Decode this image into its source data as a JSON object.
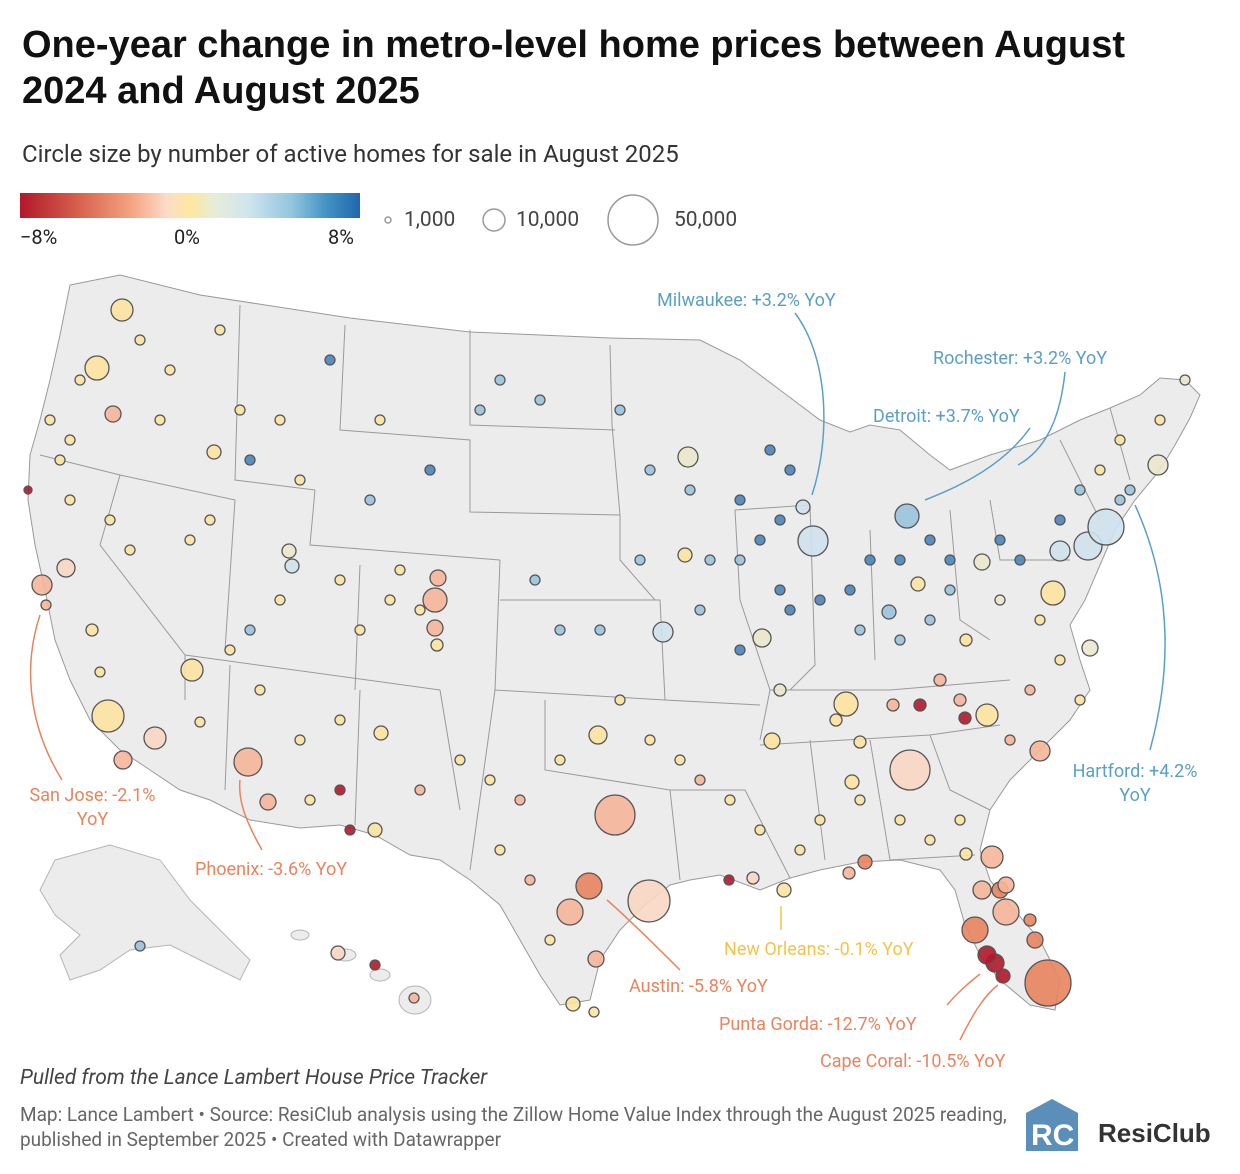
{
  "title": "One-year change in metro-level home prices between August 2024 and August 2025",
  "subtitle": "Circle size by number of active homes for sale in August 2025",
  "color_legend": {
    "min": "−8%",
    "mid": "0%",
    "max": "8%"
  },
  "size_legend": {
    "small": "1,000",
    "medium": "10,000",
    "large": "50,000"
  },
  "annotations": {
    "milwaukee": "Milwaukee: +3.2% YoY",
    "rochester": "Rochester: +3.2% YoY",
    "detroit": "Detroit: +3.7% YoY",
    "hartford_line1": "Hartford: +4.2%",
    "hartford_line2": "YoY",
    "sanjose_line1": "San Jose: -2.1%",
    "sanjose_line2": "YoY",
    "phoenix": "Phoenix: -3.6% YoY",
    "austin": "Austin: -5.8% YoY",
    "neworleans": "New Orleans: -0.1% YoY",
    "puntagorda": "Punta Gorda: -12.7% YoY",
    "capecoral": "Cape Coral: -10.5% YoY"
  },
  "note": "Pulled from the Lance Lambert House Price Tracker",
  "credit": "Map: Lance Lambert • Source: ResiClub analysis using the Zillow Home Value Index through the August 2025 reading, published in September 2025 • Created with Datawrapper",
  "logo_text": "ResiClub",
  "colors": {
    "blue_annot": "#5aa0c6",
    "orange_annot": "#e8845e",
    "yellow_annot": "#f0c44c",
    "land": "#ececec",
    "border": "#8a8a8a"
  }
}
